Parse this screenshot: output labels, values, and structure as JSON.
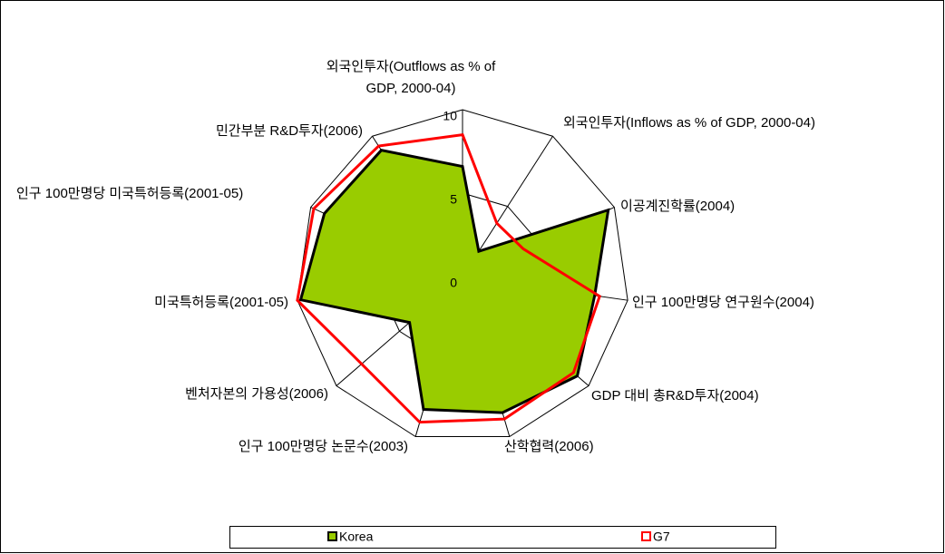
{
  "chart_data": {
    "type": "radar",
    "categories": [
      "외국인투자(Outflows as % of GDP, 2000-04)",
      "외국인투자(Inflows as % of GDP, 2000-04)",
      "이공계진학률(2004)",
      "인구 100만명당 연구원수(2004)",
      "GDP 대비 총R&D투자(2004)",
      "산학협력(2006)",
      "인구 100만명당 논문수(2003)",
      "벤처자본의 가용성(2006)",
      "미국특허등록(2001-05)",
      "인구 100만명당 미국특허등록(2001-05)",
      "민간부분 R&D투자(2006)"
    ],
    "series": [
      {
        "name": "Korea",
        "color": "#99cc00",
        "values": [
          6.6,
          1.8,
          9.6,
          8.0,
          9.1,
          8.5,
          8.3,
          4.2,
          9.8,
          9.1,
          9.0
        ]
      },
      {
        "name": "G7",
        "color": "#ff0000",
        "values": [
          8.5,
          3.8,
          4.0,
          8.3,
          8.8,
          8.9,
          9.1,
          8.0,
          10.0,
          9.8,
          9.3
        ]
      }
    ],
    "ylim": [
      0,
      10
    ],
    "yticks": [
      0,
      5,
      10
    ],
    "grid": true,
    "legend": "bottom"
  }
}
